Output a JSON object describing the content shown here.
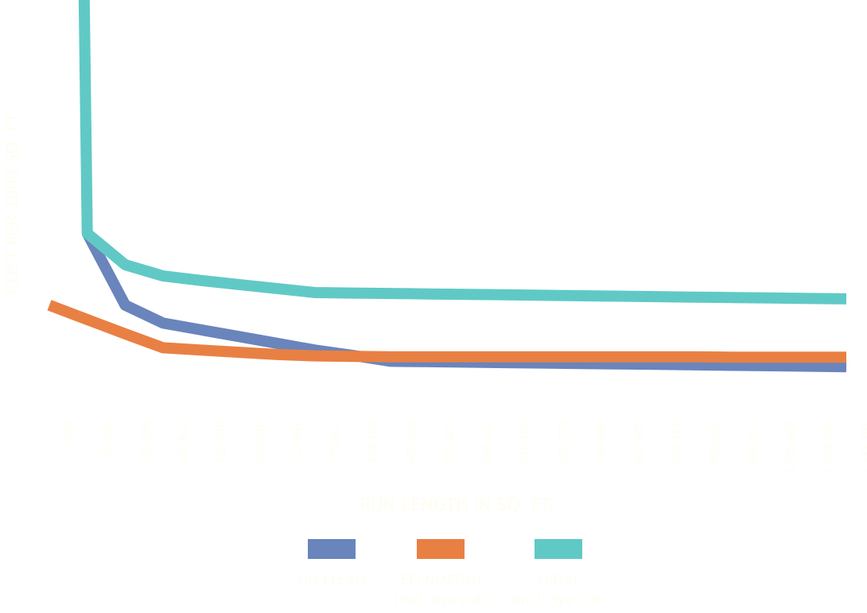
{
  "chart_data": {
    "type": "line",
    "title": "",
    "xlabel": "RUN LENGTH IN SQ. FT.",
    "ylabel": "COST PER 1000 SQ. FT.",
    "categories": [
      "2,666",
      "55,982",
      "109,298",
      "162,614",
      "215,930",
      "269,246",
      "322,561",
      "375,877",
      "429,193",
      "482,509",
      "535,825",
      "589,141",
      "642,457",
      "695,773",
      "749,089",
      "802,405",
      "855,721",
      "909,037",
      "962,353",
      "1,015,669",
      "1,068,985",
      "1,122,301"
    ],
    "ylim": [
      0,
      9
    ],
    "grid": true,
    "legend_position": "bottom",
    "series": [
      {
        "name": "HQ FLEXO",
        "name_line2": "",
        "color": "#6A85BC",
        "values": [
          null,
          3.8,
          2.2,
          1.8,
          1.65,
          1.5,
          1.35,
          1.2,
          1.08,
          0.95,
          0.94,
          0.93,
          0.92,
          0.91,
          0.9,
          0.89,
          0.88,
          0.87,
          0.86,
          0.85,
          0.84,
          0.83
        ]
      },
      {
        "name": "EFI NOZOMI",
        "name_line2": "(incl. dye cut)",
        "color": "#E98043",
        "values": [
          2.2,
          1.88,
          1.56,
          1.25,
          1.2,
          1.15,
          1.1,
          1.07,
          1.06,
          1.05,
          1.05,
          1.05,
          1.05,
          1.05,
          1.05,
          1.05,
          1.05,
          1.05,
          1.04,
          1.04,
          1.04,
          1.04
        ]
      },
      {
        "name": "Offset",
        "name_line2": "(incl. dye cut)",
        "color": "#60C9C6",
        "values": [
          null,
          3.8,
          3.1,
          2.85,
          2.75,
          2.66,
          2.57,
          2.48,
          2.47,
          2.46,
          2.45,
          2.44,
          2.43,
          2.42,
          2.41,
          2.4,
          2.39,
          2.38,
          2.37,
          2.36,
          2.35,
          2.34
        ]
      }
    ],
    "offset_top": {
      "x_category": "55,982",
      "description": "Offset series rises off the top of the chart at the second category"
    },
    "colors": {
      "label_text": "#FFFDF0",
      "grid": "#FFFDF0",
      "background": "#FFFFFF"
    }
  }
}
